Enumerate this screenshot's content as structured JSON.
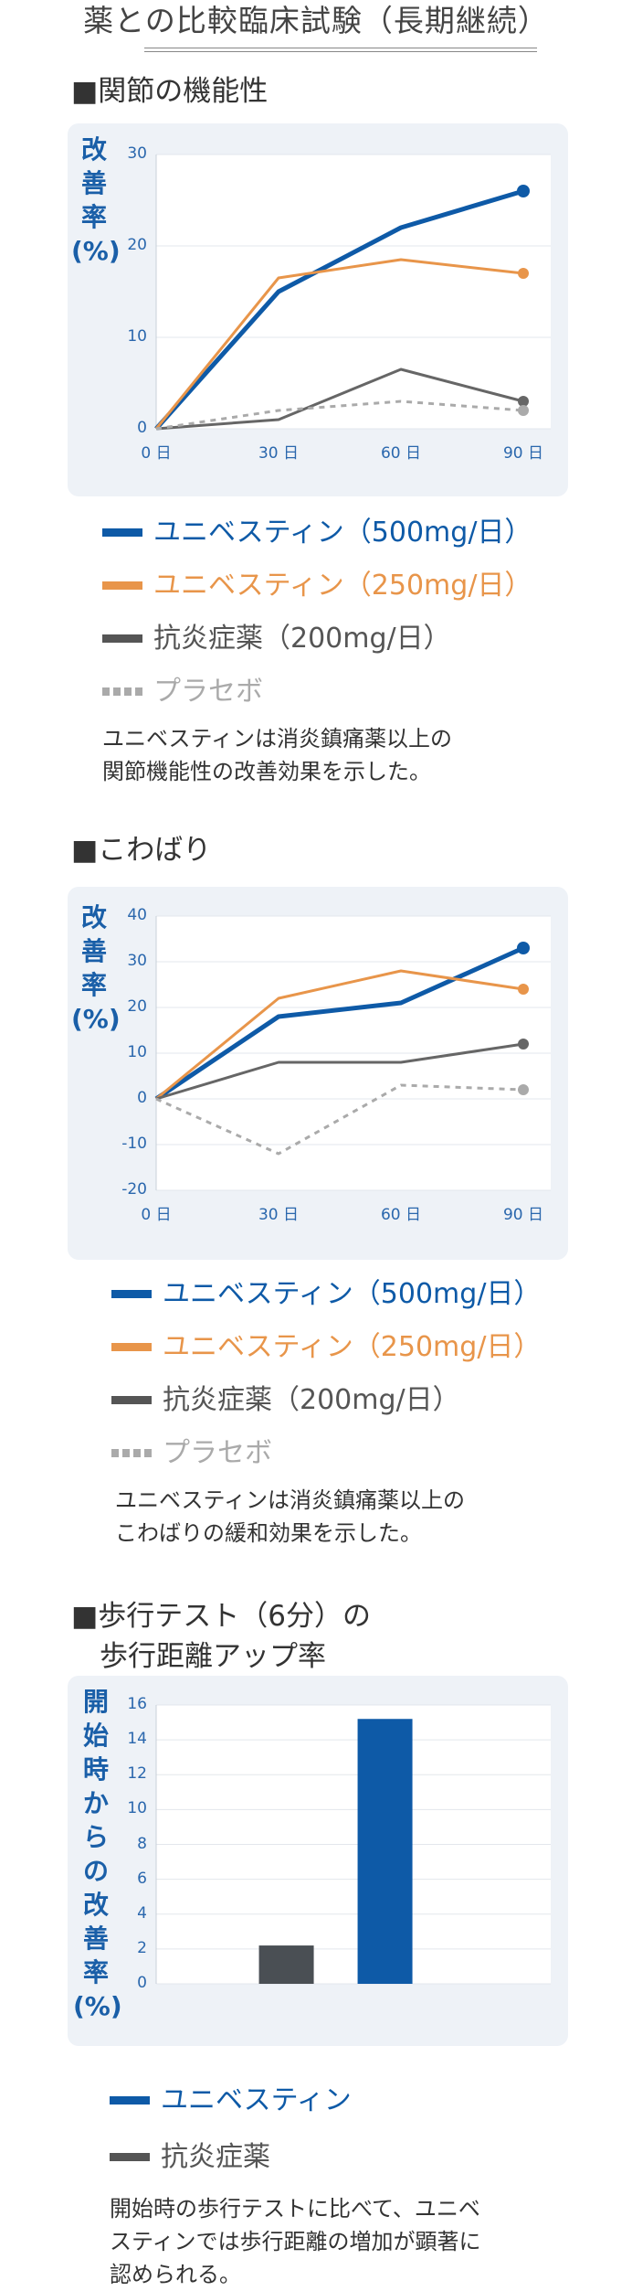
{
  "page_title": "薬との比較臨床試験（長期継続）",
  "colors": {
    "uni500": "#0e5aa7",
    "uni250": "#e8954a",
    "nsaid": "#666666",
    "placebo": "#aaaaaa"
  },
  "sections": [
    {
      "title": "■関節の機能性",
      "ylabel": "改\n善\n率\n(%)",
      "legend": [
        {
          "label": "ユニベスティン（500mg/日）",
          "color": "#0e5aa7",
          "style": "solid"
        },
        {
          "label": "ユニベスティン（250mg/日）",
          "color": "#e8954a",
          "style": "solid"
        },
        {
          "label": "抗炎症薬（200mg/日）",
          "color": "#555555",
          "style": "solid"
        },
        {
          "label": "プラセボ",
          "color": "#aaaaaa",
          "style": "dashed"
        }
      ],
      "note": "ユニベスティンは消炎鎮痛薬以上の\n関節機能性の改善効果を示した。"
    },
    {
      "title": "■こわばり",
      "ylabel": "改\n善\n率\n(%)",
      "legend": [
        {
          "label": "ユニベスティン（500mg/日）",
          "color": "#0e5aa7",
          "style": "solid"
        },
        {
          "label": "ユニベスティン（250mg/日）",
          "color": "#e8954a",
          "style": "solid"
        },
        {
          "label": "抗炎症薬（200mg/日）",
          "color": "#555555",
          "style": "solid"
        },
        {
          "label": "プラセボ",
          "color": "#aaaaaa",
          "style": "dashed"
        }
      ],
      "note": "ユニベスティンは消炎鎮痛薬以上の\nこわばりの緩和効果を示した。"
    },
    {
      "title": "■歩行テスト（6分）の\n　歩行距離アップ率",
      "ylabel": "開\n始\n時\nか\nら\nの\n改\n善\n率\n(%)",
      "legend": [
        {
          "label": "ユニベスティン",
          "color": "#0e5aa7",
          "style": "solid"
        },
        {
          "label": "抗炎症薬",
          "color": "#555555",
          "style": "solid"
        }
      ],
      "note": "開始時の歩行テストに比べて、ユニベ\nスティンでは歩行距離の増加が顕著に\n認められる。"
    }
  ],
  "chart_data": [
    {
      "type": "line",
      "categories": [
        "0 日",
        "30 日",
        "60 日",
        "90 日"
      ],
      "ylim": [
        0,
        30
      ],
      "yticks": [
        0,
        10,
        20,
        30
      ],
      "grid": true,
      "series": [
        {
          "values": [
            0,
            15,
            22,
            26
          ],
          "color": "#0e5aa7",
          "width": 5,
          "dash": "",
          "marker": true
        },
        {
          "values": [
            0,
            16.5,
            18.5,
            17
          ],
          "color": "#e8954a",
          "width": 3,
          "dash": "",
          "marker": true
        },
        {
          "values": [
            0,
            1,
            6.5,
            3
          ],
          "color": "#666666",
          "width": 3,
          "dash": "",
          "marker": true
        },
        {
          "values": [
            0,
            2,
            3,
            2
          ],
          "color": "#aaaaaa",
          "width": 3,
          "dash": "6,6",
          "marker": true
        }
      ]
    },
    {
      "type": "line",
      "categories": [
        "0 日",
        "30 日",
        "60 日",
        "90 日"
      ],
      "ylim": [
        -20,
        40
      ],
      "yticks": [
        -20,
        -10,
        0,
        10,
        20,
        30,
        40
      ],
      "grid": true,
      "series": [
        {
          "values": [
            0,
            18,
            21,
            33
          ],
          "color": "#0e5aa7",
          "width": 5,
          "dash": "",
          "marker": true
        },
        {
          "values": [
            0,
            22,
            28,
            24
          ],
          "color": "#e8954a",
          "width": 3,
          "dash": "",
          "marker": true
        },
        {
          "values": [
            0,
            8,
            8,
            12
          ],
          "color": "#666666",
          "width": 3,
          "dash": "",
          "marker": true
        },
        {
          "values": [
            0,
            -12,
            3,
            2
          ],
          "color": "#aaaaaa",
          "width": 3,
          "dash": "6,6",
          "marker": true
        }
      ]
    },
    {
      "type": "bar",
      "ylim": [
        0,
        16
      ],
      "yticks": [
        0,
        2,
        4,
        6,
        8,
        10,
        12,
        14,
        16
      ],
      "grid": true,
      "series": [
        {
          "value": 2.2,
          "color": "#4a4f54"
        },
        {
          "value": 15.2,
          "color": "#0e5aa7"
        }
      ]
    }
  ]
}
